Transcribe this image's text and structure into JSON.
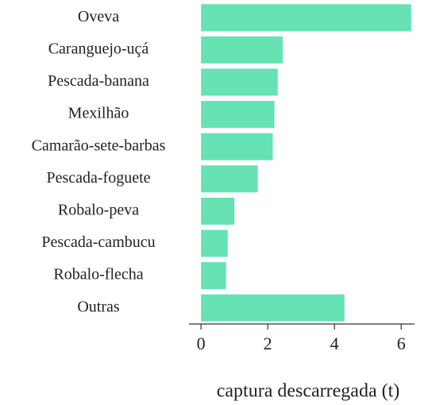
{
  "chart_data": {
    "type": "barh",
    "categories": [
      "Oveva",
      "Caranguejo-uçá",
      "Pescada-banana",
      "Mexilhão",
      "Camarão-sete-barbas",
      "Pescada-foguete",
      "Robalo-peva",
      "Pescada-cambucu",
      "Robalo-flecha",
      "Outras"
    ],
    "values": [
      6.3,
      2.45,
      2.3,
      2.2,
      2.15,
      1.7,
      1.0,
      0.8,
      0.75,
      4.3
    ],
    "color": "#66e2b4",
    "xlabel": "captura descarregada (t)",
    "xlim": [
      -0.36,
      6.4
    ],
    "xticks": [
      0,
      2,
      4,
      6
    ]
  }
}
